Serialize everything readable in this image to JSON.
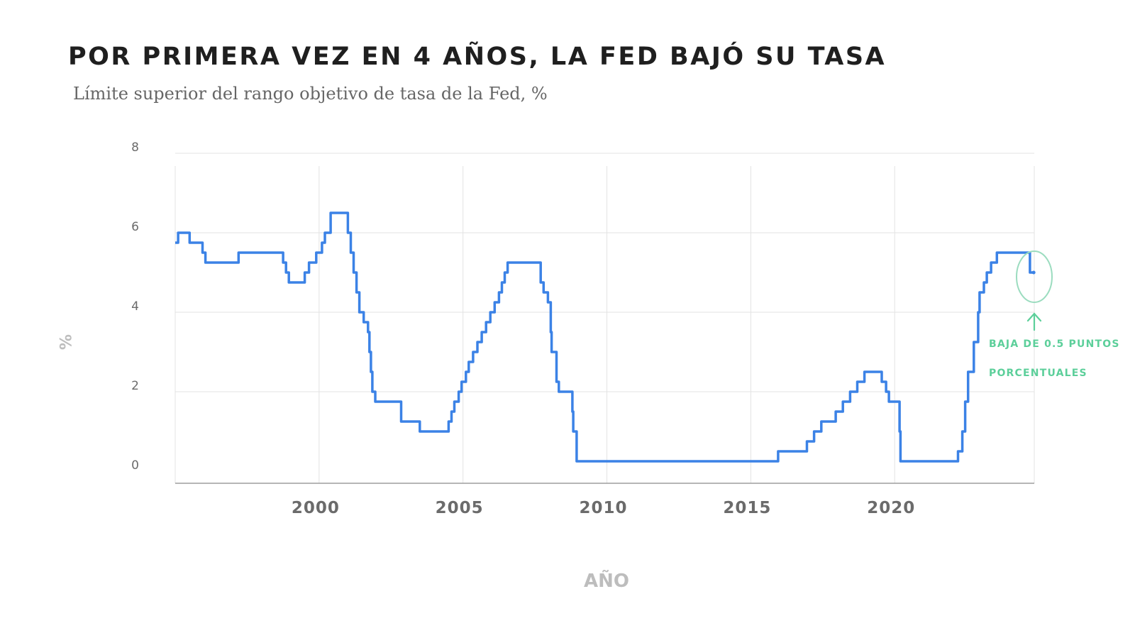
{
  "title": "POR PRIMERA VEZ EN 4 AÑOS, LA FED BAJÓ SU TASA",
  "subtitle": "Límite superior del rango objetivo de tasa de la Fed, %",
  "annotation": {
    "line1": "BAJA DE 0.5 PUNTOS",
    "line2": "PORCENTUALES",
    "color": "#5ccf9a"
  },
  "chart_data": {
    "type": "line",
    "title": "POR PRIMERA VEZ EN 4 AÑOS, LA FED BAJÓ SU TASA",
    "subtitle": "Límite superior del rango objetivo de tasa de la Fed, %",
    "xlabel": "AÑO",
    "ylabel": "%",
    "xlim": [
      1995.0,
      2024.85
    ],
    "ylim": [
      0,
      8
    ],
    "x_ticks": [
      2000,
      2005,
      2010,
      2015,
      2020
    ],
    "y_ticks": [
      0,
      2,
      4,
      6,
      8
    ],
    "grid": true,
    "line_color": "#3b82e6",
    "series": [
      {
        "step": true,
        "points": [
          [
            1995.0,
            5.75
          ],
          [
            1995.1,
            6.0
          ],
          [
            1995.5,
            5.75
          ],
          [
            1995.95,
            5.5
          ],
          [
            1996.05,
            5.25
          ],
          [
            1997.2,
            5.5
          ],
          [
            1998.75,
            5.25
          ],
          [
            1998.85,
            5.0
          ],
          [
            1998.95,
            4.75
          ],
          [
            1999.5,
            5.0
          ],
          [
            1999.65,
            5.25
          ],
          [
            1999.9,
            5.5
          ],
          [
            2000.1,
            5.75
          ],
          [
            2000.2,
            6.0
          ],
          [
            2000.4,
            6.5
          ],
          [
            2001.0,
            6.0
          ],
          [
            2001.1,
            5.5
          ],
          [
            2001.2,
            5.0
          ],
          [
            2001.3,
            4.5
          ],
          [
            2001.4,
            4.0
          ],
          [
            2001.55,
            3.75
          ],
          [
            2001.7,
            3.5
          ],
          [
            2001.75,
            3.0
          ],
          [
            2001.8,
            2.5
          ],
          [
            2001.85,
            2.0
          ],
          [
            2001.95,
            1.75
          ],
          [
            2002.85,
            1.25
          ],
          [
            2003.5,
            1.0
          ],
          [
            2004.5,
            1.25
          ],
          [
            2004.6,
            1.5
          ],
          [
            2004.7,
            1.75
          ],
          [
            2004.85,
            2.0
          ],
          [
            2004.95,
            2.25
          ],
          [
            2005.1,
            2.5
          ],
          [
            2005.2,
            2.75
          ],
          [
            2005.35,
            3.0
          ],
          [
            2005.5,
            3.25
          ],
          [
            2005.65,
            3.5
          ],
          [
            2005.8,
            3.75
          ],
          [
            2005.95,
            4.0
          ],
          [
            2006.1,
            4.25
          ],
          [
            2006.25,
            4.5
          ],
          [
            2006.35,
            4.75
          ],
          [
            2006.45,
            5.0
          ],
          [
            2006.55,
            5.25
          ],
          [
            2007.7,
            4.75
          ],
          [
            2007.8,
            4.5
          ],
          [
            2007.95,
            4.25
          ],
          [
            2008.05,
            3.5
          ],
          [
            2008.08,
            3.0
          ],
          [
            2008.25,
            2.25
          ],
          [
            2008.33,
            2.0
          ],
          [
            2008.8,
            1.5
          ],
          [
            2008.83,
            1.0
          ],
          [
            2008.95,
            0.25
          ],
          [
            2015.95,
            0.5
          ],
          [
            2016.95,
            0.75
          ],
          [
            2017.2,
            1.0
          ],
          [
            2017.45,
            1.25
          ],
          [
            2017.95,
            1.5
          ],
          [
            2018.2,
            1.75
          ],
          [
            2018.45,
            2.0
          ],
          [
            2018.7,
            2.25
          ],
          [
            2018.95,
            2.5
          ],
          [
            2019.55,
            2.25
          ],
          [
            2019.7,
            2.0
          ],
          [
            2019.8,
            1.75
          ],
          [
            2020.17,
            1.0
          ],
          [
            2020.2,
            0.25
          ],
          [
            2022.2,
            0.5
          ],
          [
            2022.35,
            1.0
          ],
          [
            2022.45,
            1.75
          ],
          [
            2022.55,
            2.5
          ],
          [
            2022.75,
            3.25
          ],
          [
            2022.9,
            4.0
          ],
          [
            2022.95,
            4.5
          ],
          [
            2023.1,
            4.75
          ],
          [
            2023.2,
            5.0
          ],
          [
            2023.35,
            5.25
          ],
          [
            2023.55,
            5.5
          ],
          [
            2024.7,
            5.0
          ]
        ]
      }
    ]
  }
}
